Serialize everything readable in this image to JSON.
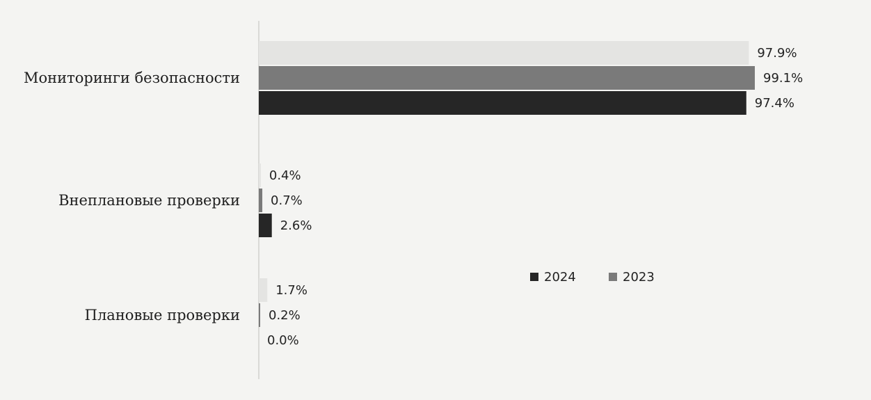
{
  "chart_data": {
    "type": "bar",
    "orientation": "horizontal",
    "categories": [
      "Мониторинги безопасности",
      "Внеплановые проверки",
      "Плановые проверки"
    ],
    "series": [
      {
        "values": [
          97.9,
          0.4,
          1.7
        ],
        "color": "#e4e4e2"
      },
      {
        "name": "2023",
        "values": [
          99.1,
          0.7,
          0.2
        ],
        "color": "#7a7a7a"
      },
      {
        "name": "2024",
        "values": [
          97.4,
          2.6,
          0.0
        ],
        "color": "#262626"
      }
    ],
    "value_labels": [
      [
        "97.9%",
        "0.4%",
        "1.7%"
      ],
      [
        "99.1%",
        "0.7%",
        "0.2%"
      ],
      [
        "97.4%",
        "2.6%",
        "0.0%"
      ]
    ],
    "legend": {
      "placement": "center-right",
      "entries": [
        {
          "label": "2024",
          "color": "#262626"
        },
        {
          "label": "2023",
          "color": "#7a7a7a"
        }
      ]
    },
    "xlim": [
      0,
      100
    ],
    "grid": false,
    "title": "",
    "xlabel": "",
    "ylabel": ""
  }
}
